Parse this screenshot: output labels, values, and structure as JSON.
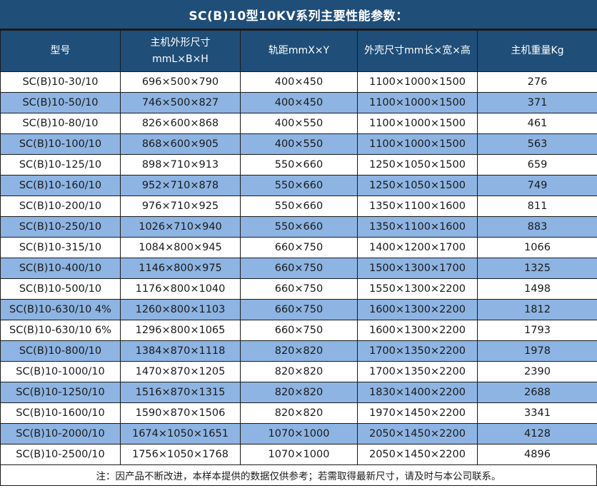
{
  "title": "SC(B)10型10KV系列主要性能参数：",
  "header_labels": [
    "型号",
    "主机外形尺寸\nmmL×B×H",
    "轨距mmX×Y",
    "外壳尺寸mm长×宽×高",
    "主机重量Kg"
  ],
  "footer_note": "注：因产品不断改进，本样本提供的数据仅供参考；若需取得最新尺寸，请及时与本公司联系。",
  "colors": {
    "header_bg": "#1F4E79",
    "row_alt_bg": "#8DB4E2",
    "border_color": "#1a1a1a",
    "text_dark": "#1a1a1a",
    "header_text": "#ffffff"
  },
  "chart_data": {
    "type": "table",
    "title": "SC(B)10型10KV系列主要性能参数：",
    "columns": [
      "型号",
      "主机外形尺寸mmL×B×H",
      "轨距mmX×Y",
      "外壳尺寸mm长×宽×高",
      "主机重量Kg"
    ],
    "rows": [
      [
        "SC(B)10-30/10",
        "696×500×790",
        "400×450",
        "1100×1000×1500",
        "276"
      ],
      [
        "SC(B)10-50/10",
        "746×500×827",
        "400×450",
        "1100×1000×1500",
        "371"
      ],
      [
        "SC(B)10-80/10",
        "826×600×868",
        "400×550",
        "1100×1000×1500",
        "461"
      ],
      [
        "SC(B)10-100/10",
        "868×600×905",
        "400×550",
        "1100×1000×1500",
        "563"
      ],
      [
        "SC(B)10-125/10",
        "898×710×913",
        "550×660",
        "1250×1050×1500",
        "659"
      ],
      [
        "SC(B)10-160/10",
        "952×710×878",
        "550×660",
        "1250×1050×1500",
        "749"
      ],
      [
        "SC(B)10-200/10",
        "976×710×925",
        "550×660",
        "1350×1100×1600",
        "811"
      ],
      [
        "SC(B)10-250/10",
        "1026×710×940",
        "550×660",
        "1350×1100×1600",
        "883"
      ],
      [
        "SC(B)10-315/10",
        "1084×800×945",
        "660×750",
        "1400×1200×1700",
        "1066"
      ],
      [
        "SC(B)10-400/10",
        "1146×800×975",
        "660×750",
        "1500×1300×1700",
        "1325"
      ],
      [
        "SC(B)10-500/10",
        "1176×800×1040",
        "660×750",
        "1550×1300×2200",
        "1498"
      ],
      [
        "SC(B)10-630/10 4%",
        "1260×800×1103",
        "660×750",
        "1600×1300×2200",
        "1812"
      ],
      [
        "SC(B)10-630/10 6%",
        "1296×800×1065",
        "660×750",
        "1600×1300×2200",
        "1793"
      ],
      [
        "SC(B)10-800/10",
        "1384×870×1118",
        "820×820",
        "1700×1350×2200",
        "1978"
      ],
      [
        "SC(B)10-1000/10",
        "1470×870×1205",
        "820×820",
        "1700×1350×2200",
        "2390"
      ],
      [
        "SC(B)10-1250/10",
        "1516×870×1315",
        "820×820",
        "1830×1400×2200",
        "2688"
      ],
      [
        "SC(B)10-1600/10",
        "1590×870×1506",
        "820×820",
        "1970×1450×2200",
        "3341"
      ],
      [
        "SC(B)10-2000/10",
        "1674×1050×1651",
        "1070×1000",
        "2050×1450×2200",
        "4128"
      ],
      [
        "SC(B)10-2500/10",
        "1756×1050×1768",
        "1070×1000",
        "2050×1450×2200",
        "4896"
      ]
    ],
    "note": "注：因产品不断改进，本样本提供的数据仅供参考；若需取得最新尺寸，请及时与本公司联系。",
    "row_striping": "odd rows white, even rows light blue"
  }
}
